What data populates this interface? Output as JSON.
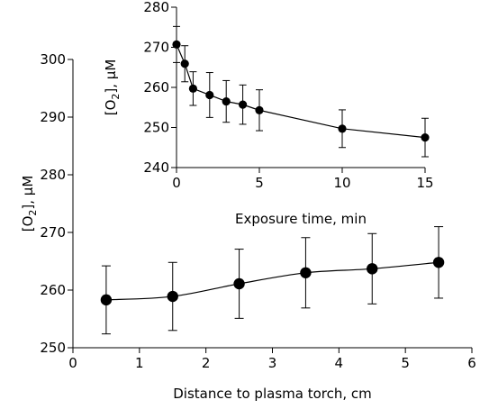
{
  "chart_data": [
    {
      "id": "main",
      "type": "line",
      "xlabel": "Distance to plasma torch, cm",
      "ylabel_main": "[O",
      "ylabel_sub": "2",
      "ylabel_rest": "], µM",
      "xlim": [
        0,
        6
      ],
      "ylim": [
        250,
        300
      ],
      "x_ticks": [
        "0",
        "1",
        "2",
        "3",
        "4",
        "5",
        "6"
      ],
      "y_ticks": [
        "250",
        "260",
        "270",
        "280",
        "290",
        "300"
      ],
      "series": [
        {
          "x": [
            0.5,
            1.5,
            2.5,
            3.5,
            4.5,
            5.5
          ],
          "y": [
            258.3,
            258.9,
            261.1,
            263.0,
            263.7,
            264.8
          ],
          "err": [
            5.9,
            5.9,
            6.0,
            6.1,
            6.1,
            6.2
          ]
        }
      ],
      "smooth": true,
      "grid": false,
      "legend": "none"
    },
    {
      "id": "inset",
      "type": "line",
      "xlabel": "Exposure time, min",
      "ylabel_main": "[O",
      "ylabel_sub": "2",
      "ylabel_rest": "], µM",
      "xlim": [
        0,
        15
      ],
      "ylim": [
        240,
        280
      ],
      "x_ticks": [
        "0",
        "5",
        "10",
        "15"
      ],
      "y_ticks": [
        "240",
        "250",
        "260",
        "270",
        "280"
      ],
      "series": [
        {
          "x": [
            0,
            0.5,
            1,
            2,
            3,
            4,
            5,
            10,
            15
          ],
          "y": [
            270.7,
            265.9,
            259.7,
            258.1,
            256.5,
            255.7,
            254.3,
            249.7,
            247.5
          ],
          "err": [
            4.5,
            4.5,
            4.2,
            5.6,
            5.2,
            4.9,
            5.1,
            4.7,
            4.8
          ]
        }
      ],
      "smooth": false,
      "grid": false,
      "legend": "none"
    }
  ]
}
